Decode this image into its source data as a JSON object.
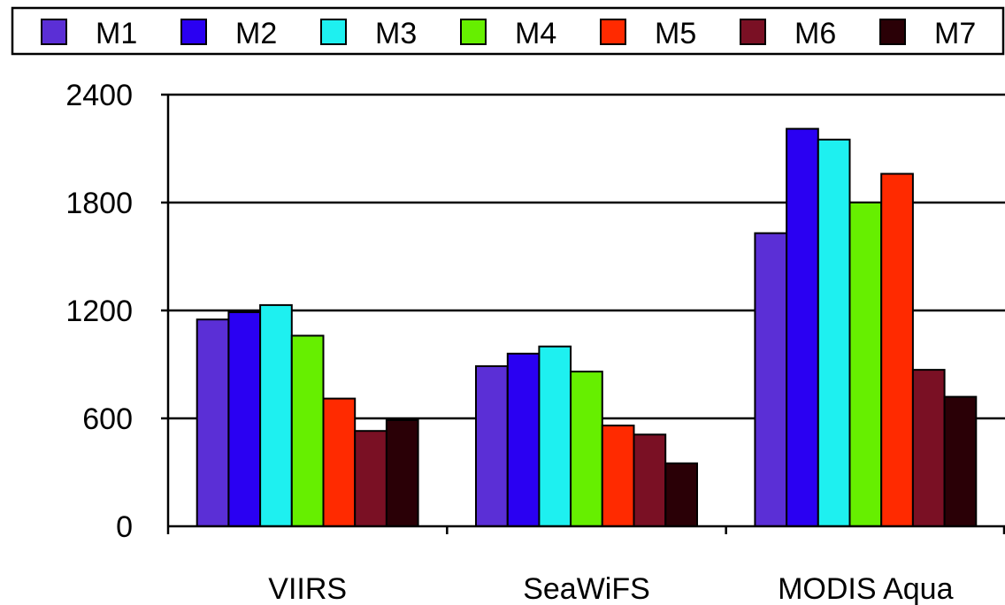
{
  "chart_data": {
    "type": "bar",
    "title": "",
    "xlabel": "",
    "ylabel": "",
    "categories": [
      "VIIRS",
      "SeaWiFS",
      "MODIS Aqua"
    ],
    "ylim": [
      0,
      2400
    ],
    "yticks": [
      0,
      600,
      1200,
      1800,
      2400
    ],
    "ytick_labels": [
      "0",
      "600",
      "1200",
      "1800",
      "2400"
    ],
    "grid": "horizontal gridlines at 600, 1200, 1800",
    "legend_position": "top",
    "series": [
      {
        "name": "M1",
        "color": "#5b2fd6",
        "values": [
          1150,
          890,
          1630
        ]
      },
      {
        "name": "M2",
        "color": "#2a00f2",
        "values": [
          1190,
          960,
          2210
        ]
      },
      {
        "name": "M3",
        "color": "#1ef0f0",
        "values": [
          1230,
          1000,
          2150
        ]
      },
      {
        "name": "M4",
        "color": "#66ef00",
        "values": [
          1060,
          860,
          1800
        ]
      },
      {
        "name": "M5",
        "color": "#ff2a00",
        "values": [
          710,
          560,
          1960
        ]
      },
      {
        "name": "M6",
        "color": "#7a1024",
        "values": [
          530,
          510,
          870
        ]
      },
      {
        "name": "M7",
        "color": "#2a0006",
        "values": [
          590,
          350,
          720
        ]
      }
    ]
  }
}
